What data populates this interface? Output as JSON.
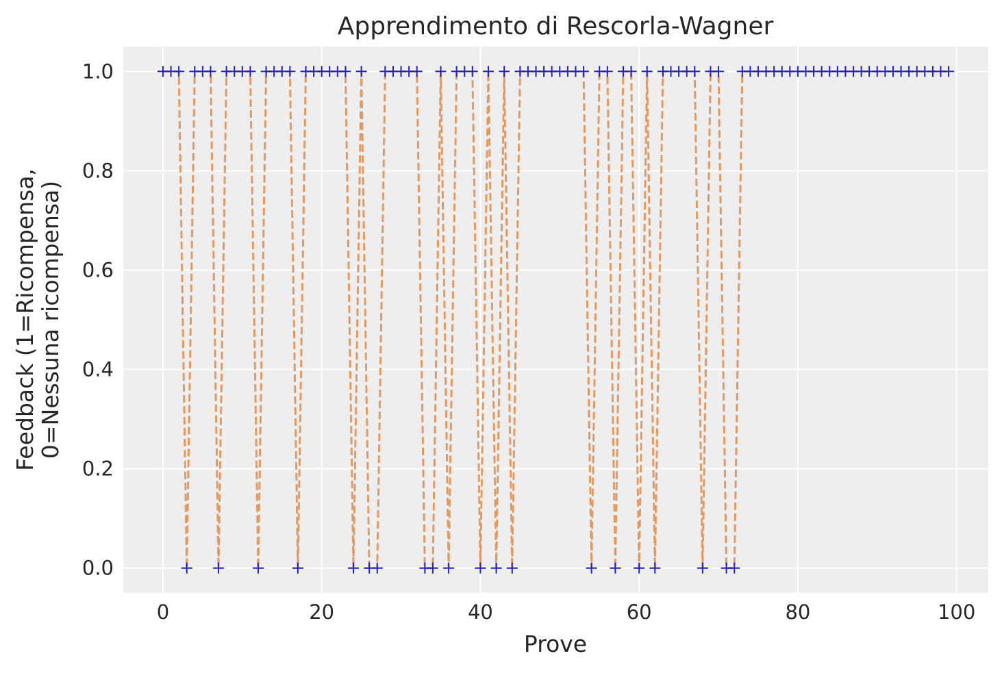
{
  "chart_data": {
    "type": "line",
    "title": "Apprendimento di Rescorla-Wagner",
    "xlabel": "Prove",
    "ylabel_lines": [
      "Feedback (1=Ricompensa,",
      "0=Nessuna ricompensa)"
    ],
    "xlim": [
      -5,
      104
    ],
    "ylim": [
      -0.05,
      1.05
    ],
    "x_ticks": [
      0,
      20,
      40,
      60,
      80,
      100
    ],
    "y_ticks": [
      0.0,
      0.2,
      0.4,
      0.6,
      0.8,
      1.0
    ],
    "x_tick_labels": [
      "0",
      "20",
      "40",
      "60",
      "80",
      "100"
    ],
    "y_tick_labels": [
      "0.0",
      "0.2",
      "0.4",
      "0.6",
      "0.8",
      "1.0"
    ],
    "grid": true,
    "colors": {
      "plot_bg": "#eeeeee",
      "grid": "#ffffff",
      "line": "#e0955b",
      "marker": "#2222cc"
    },
    "series": [
      {
        "marker": "+",
        "linestyle": "dashed",
        "x": [
          0,
          1,
          2,
          3,
          4,
          5,
          6,
          7,
          8,
          9,
          10,
          11,
          12,
          13,
          14,
          15,
          16,
          17,
          18,
          19,
          20,
          21,
          22,
          23,
          24,
          25,
          26,
          27,
          28,
          29,
          30,
          31,
          32,
          33,
          34,
          35,
          36,
          37,
          38,
          39,
          40,
          41,
          42,
          43,
          44,
          45,
          46,
          47,
          48,
          49,
          50,
          51,
          52,
          53,
          54,
          55,
          56,
          57,
          58,
          59,
          60,
          61,
          62,
          63,
          64,
          65,
          66,
          67,
          68,
          69,
          70,
          71,
          72,
          73,
          74,
          75,
          76,
          77,
          78,
          79,
          80,
          81,
          82,
          83,
          84,
          85,
          86,
          87,
          88,
          89,
          90,
          91,
          92,
          93,
          94,
          95,
          96,
          97,
          98,
          99
        ],
        "y": [
          1,
          1,
          1,
          0,
          1,
          1,
          1,
          0,
          1,
          1,
          1,
          1,
          0,
          1,
          1,
          1,
          1,
          0,
          1,
          1,
          1,
          1,
          1,
          1,
          0,
          1,
          0,
          0,
          1,
          1,
          1,
          1,
          1,
          0,
          0,
          1,
          0,
          1,
          1,
          1,
          0,
          1,
          0,
          1,
          0,
          1,
          1,
          1,
          1,
          1,
          1,
          1,
          1,
          1,
          0,
          1,
          1,
          0,
          1,
          1,
          0,
          1,
          0,
          1,
          1,
          1,
          1,
          1,
          0,
          1,
          1,
          0,
          0,
          1,
          1,
          1,
          1,
          1,
          1,
          1,
          1,
          1,
          1,
          1,
          1,
          1,
          1,
          1,
          1,
          1,
          1,
          1,
          1,
          1,
          1,
          1,
          1,
          1,
          1,
          1
        ]
      }
    ]
  }
}
